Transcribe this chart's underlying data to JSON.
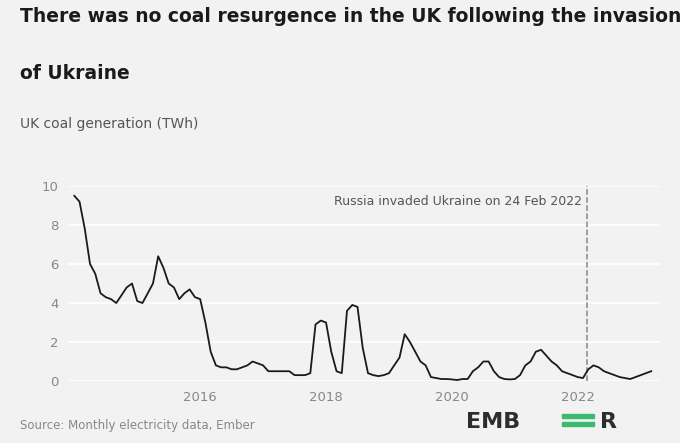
{
  "title_line1": "There was no coal resurgence in the UK following the invasion",
  "title_line2": "of Ukraine",
  "ylabel": "UK coal generation (TWh)",
  "source": "Source: Monthly electricity data, Ember",
  "annotation": "Russia invaded Ukraine on 24 Feb 2022",
  "vline_x": 2022.15,
  "ylim": [
    0,
    10
  ],
  "yticks": [
    0,
    2,
    4,
    6,
    8,
    10
  ],
  "bg_color": "#f2f2f2",
  "line_color": "#1a1a1a",
  "grid_color": "#ffffff",
  "title_fontsize": 13.5,
  "label_fontsize": 10,
  "tick_fontsize": 9.5,
  "annotation_fontsize": 9,
  "source_fontsize": 8.5,
  "ember_fontsize": 15,
  "ember_green": "#3dba6f",
  "ember_dark": "#2d2d2d",
  "dates": [
    2014.0,
    2014.083,
    2014.167,
    2014.25,
    2014.333,
    2014.417,
    2014.5,
    2014.583,
    2014.667,
    2014.75,
    2014.833,
    2014.917,
    2015.0,
    2015.083,
    2015.167,
    2015.25,
    2015.333,
    2015.417,
    2015.5,
    2015.583,
    2015.667,
    2015.75,
    2015.833,
    2015.917,
    2016.0,
    2016.083,
    2016.167,
    2016.25,
    2016.333,
    2016.417,
    2016.5,
    2016.583,
    2016.667,
    2016.75,
    2016.833,
    2016.917,
    2017.0,
    2017.083,
    2017.167,
    2017.25,
    2017.333,
    2017.417,
    2017.5,
    2017.583,
    2017.667,
    2017.75,
    2017.833,
    2017.917,
    2018.0,
    2018.083,
    2018.167,
    2018.25,
    2018.333,
    2018.417,
    2018.5,
    2018.583,
    2018.667,
    2018.75,
    2018.833,
    2018.917,
    2019.0,
    2019.083,
    2019.167,
    2019.25,
    2019.333,
    2019.417,
    2019.5,
    2019.583,
    2019.667,
    2019.75,
    2019.833,
    2019.917,
    2020.0,
    2020.083,
    2020.167,
    2020.25,
    2020.333,
    2020.417,
    2020.5,
    2020.583,
    2020.667,
    2020.75,
    2020.833,
    2020.917,
    2021.0,
    2021.083,
    2021.167,
    2021.25,
    2021.333,
    2021.417,
    2021.5,
    2021.583,
    2021.667,
    2021.75,
    2021.833,
    2021.917,
    2022.0,
    2022.083,
    2022.167,
    2022.25,
    2022.333,
    2022.417,
    2022.5,
    2022.583,
    2022.667,
    2022.75,
    2022.833,
    2022.917,
    2023.0,
    2023.083,
    2023.167
  ],
  "values": [
    9.5,
    9.2,
    7.8,
    6.0,
    5.5,
    4.5,
    4.3,
    4.2,
    4.0,
    4.4,
    4.8,
    5.0,
    4.1,
    4.0,
    4.5,
    5.0,
    6.4,
    5.8,
    5.0,
    4.8,
    4.2,
    4.5,
    4.7,
    4.3,
    4.2,
    3.0,
    1.5,
    0.8,
    0.7,
    0.7,
    0.6,
    0.6,
    0.7,
    0.8,
    1.0,
    0.9,
    0.8,
    0.5,
    0.5,
    0.5,
    0.5,
    0.5,
    0.3,
    0.3,
    0.3,
    0.4,
    2.9,
    3.1,
    3.0,
    1.5,
    0.5,
    0.4,
    3.6,
    3.9,
    3.8,
    1.7,
    0.4,
    0.3,
    0.25,
    0.3,
    0.4,
    0.8,
    1.2,
    2.4,
    2.0,
    1.5,
    1.0,
    0.8,
    0.2,
    0.15,
    0.1,
    0.1,
    0.08,
    0.05,
    0.1,
    0.1,
    0.5,
    0.7,
    1.0,
    1.0,
    0.5,
    0.2,
    0.1,
    0.08,
    0.1,
    0.3,
    0.8,
    1.0,
    1.5,
    1.6,
    1.3,
    1.0,
    0.8,
    0.5,
    0.4,
    0.3,
    0.2,
    0.15,
    0.6,
    0.8,
    0.7,
    0.5,
    0.4,
    0.3,
    0.2,
    0.15,
    0.1,
    0.2,
    0.3,
    0.4,
    0.5
  ],
  "xticks": [
    2016,
    2018,
    2020,
    2022
  ],
  "xlim": [
    2013.9,
    2023.3
  ]
}
